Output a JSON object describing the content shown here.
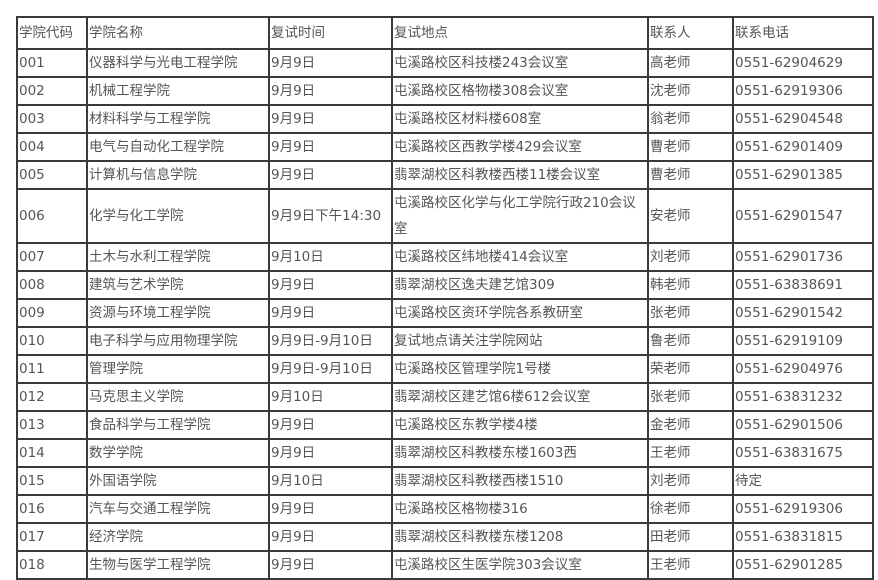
{
  "table": {
    "headers": [
      "学院代码",
      "学院名称",
      "复试时间",
      "复试地点",
      "联系人",
      "联系电话"
    ],
    "rows": [
      [
        "001",
        "仪器科学与光电工程学院",
        "9月9日",
        "屯溪路校区科技楼243会议室",
        "高老师",
        "0551-62904629"
      ],
      [
        "002",
        "机械工程学院",
        "9月9日",
        "屯溪路校区格物楼308会议室",
        "沈老师",
        "0551-62919306"
      ],
      [
        "003",
        "材料科学与工程学院",
        "9月9日",
        "屯溪路校区材料楼608室",
        "翁老师",
        "0551-62904548"
      ],
      [
        "004",
        "电气与自动化工程学院",
        "9月9日",
        "屯溪路校区西教学楼429会议室",
        "曹老师",
        "0551-62901409"
      ],
      [
        "005",
        "计算机与信息学院",
        "9月9日",
        "翡翠湖校区科教楼西楼11楼会议室",
        "曹老师",
        "0551-62901385"
      ],
      [
        "006",
        "化学与化工学院",
        "9月9日下午14:30",
        "屯溪路校区化学与化工学院行政210会议室",
        "安老师",
        "0551-62901547"
      ],
      [
        "007",
        "土木与水利工程学院",
        "9月10日",
        "屯溪路校区纬地楼414会议室",
        "刘老师",
        "0551-62901736"
      ],
      [
        "008",
        "建筑与艺术学院",
        "9月9日",
        "翡翠湖校区逸夫建艺馆309",
        "韩老师",
        "0551-63838691"
      ],
      [
        "009",
        "资源与环境工程学院",
        "9月9日",
        "屯溪路校区资环学院各系教研室",
        "张老师",
        "0551-62901542"
      ],
      [
        "010",
        "电子科学与应用物理学院",
        "9月9日-9月10日",
        "复试地点请关注学院网站",
        "鲁老师",
        "0551-62919109"
      ],
      [
        "011",
        "管理学院",
        "9月9日-9月10日",
        "屯溪路校区管理学院1号楼",
        "荣老师",
        "0551-62904976"
      ],
      [
        "012",
        "马克思主义学院",
        "9月10日",
        "翡翠湖校区建艺馆6楼612会议室",
        "张老师",
        "0551-63831232"
      ],
      [
        "013",
        "食品科学与工程学院",
        "9月9日",
        "屯溪路校区东教学楼4楼",
        "金老师",
        "0551-62901506"
      ],
      [
        "014",
        "数学学院",
        "9月9日",
        "翡翠湖校区科教楼东楼1603西",
        "王老师",
        "0551-63831675"
      ],
      [
        "015",
        "外国语学院",
        "9月10日",
        "翡翠湖校区科教楼西楼1510",
        "刘老师",
        "待定"
      ],
      [
        "016",
        "汽车与交通工程学院",
        "9月9日",
        "屯溪路校区格物楼316",
        "徐老师",
        "0551-62919306"
      ],
      [
        "017",
        "经济学院",
        "9月9日",
        "翡翠湖校区科教楼东楼1208",
        "田老师",
        "0551-63831815"
      ],
      [
        "018",
        "生物与医学工程学院",
        "9月9日",
        "屯溪路校区生医学院303会议室",
        "王老师",
        "0551-62901285"
      ]
    ]
  }
}
